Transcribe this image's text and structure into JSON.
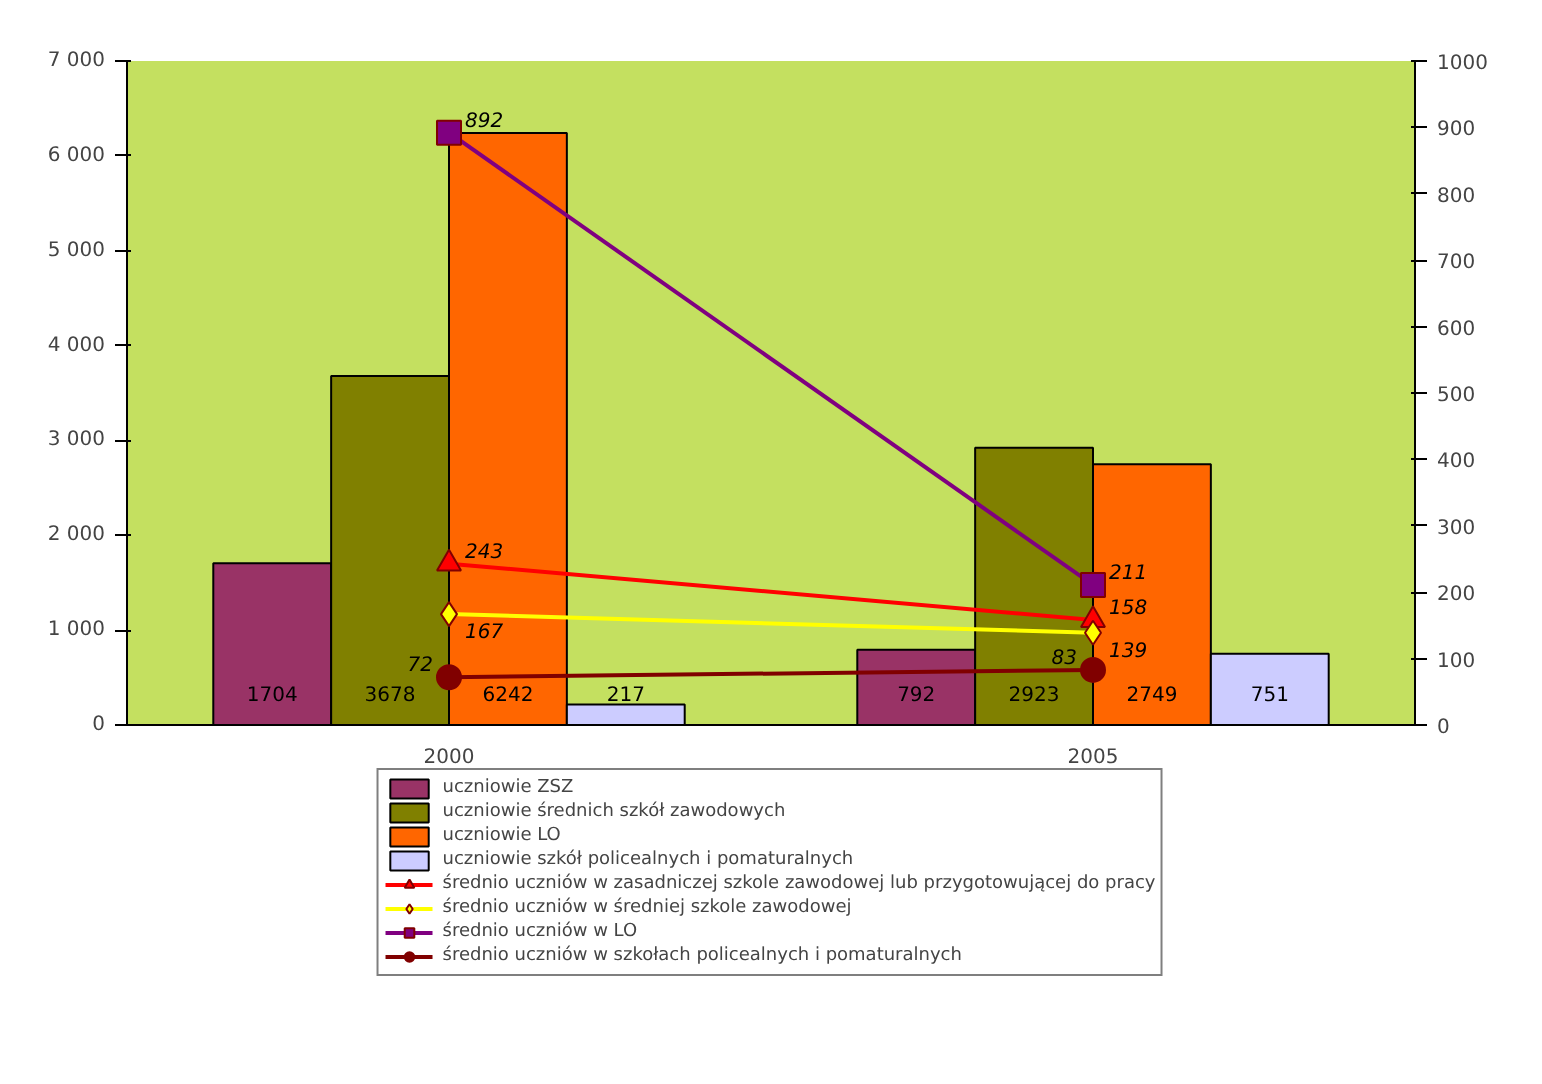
{
  "chart_data": {
    "type": "bar",
    "categories": [
      "2000",
      "2005"
    ],
    "series": [
      {
        "name": "uczniowie ZSZ",
        "color": "#993366",
        "values": [
          1704,
          792
        ]
      },
      {
        "name": "uczniowie średnich szkół zawodowych",
        "color": "#808000",
        "values": [
          3678,
          2923
        ]
      },
      {
        "name": "uczniowie LO",
        "color": "#ff6600",
        "values": [
          6242,
          2749
        ]
      },
      {
        "name": "uczniowie szkół policealnych i pomaturalnych",
        "color": "#ccccff",
        "values": [
          217,
          751
        ]
      },
      {
        "name": "średnio uczniów w zasadniczej szkole zawodowej lub przygotowującej do pracy",
        "type": "line",
        "axis": "y2",
        "marker": "triangle",
        "color": "#ff0000",
        "values": [
          243,
          158
        ]
      },
      {
        "name": "średnio uczniów w średniej szkole zawodowej",
        "type": "line",
        "axis": "y2",
        "marker": "diamond",
        "color": "#ffff00",
        "values": [
          167,
          139
        ]
      },
      {
        "name": "średnio uczniów w LO",
        "type": "line",
        "axis": "y2",
        "marker": "square",
        "color": "#800080",
        "values": [
          892,
          211
        ]
      },
      {
        "name": "średnio uczniów w szkołach policealnych i pomaturalnych",
        "type": "line",
        "axis": "y2",
        "marker": "circle",
        "color": "#800000",
        "values": [
          72,
          83
        ]
      }
    ],
    "ylim": [
      0,
      7000
    ],
    "yticks": [
      0,
      {
        "value": 1000,
        "label": "1 000"
      },
      {
        "value": 2000,
        "label": "2 000"
      },
      {
        "value": 3000,
        "label": "3 000"
      },
      {
        "value": 4000,
        "label": "4 000"
      },
      {
        "value": 5000,
        "label": "5 000"
      },
      {
        "value": 6000,
        "label": "6 000"
      },
      {
        "value": 7000,
        "label": "7 000"
      }
    ],
    "y2lim": [
      0,
      1000
    ],
    "y2ticks": [
      0,
      100,
      200,
      300,
      400,
      500,
      600,
      700,
      800,
      900,
      1000
    ],
    "data_labels": true,
    "grid": false,
    "legend": "bottom"
  }
}
